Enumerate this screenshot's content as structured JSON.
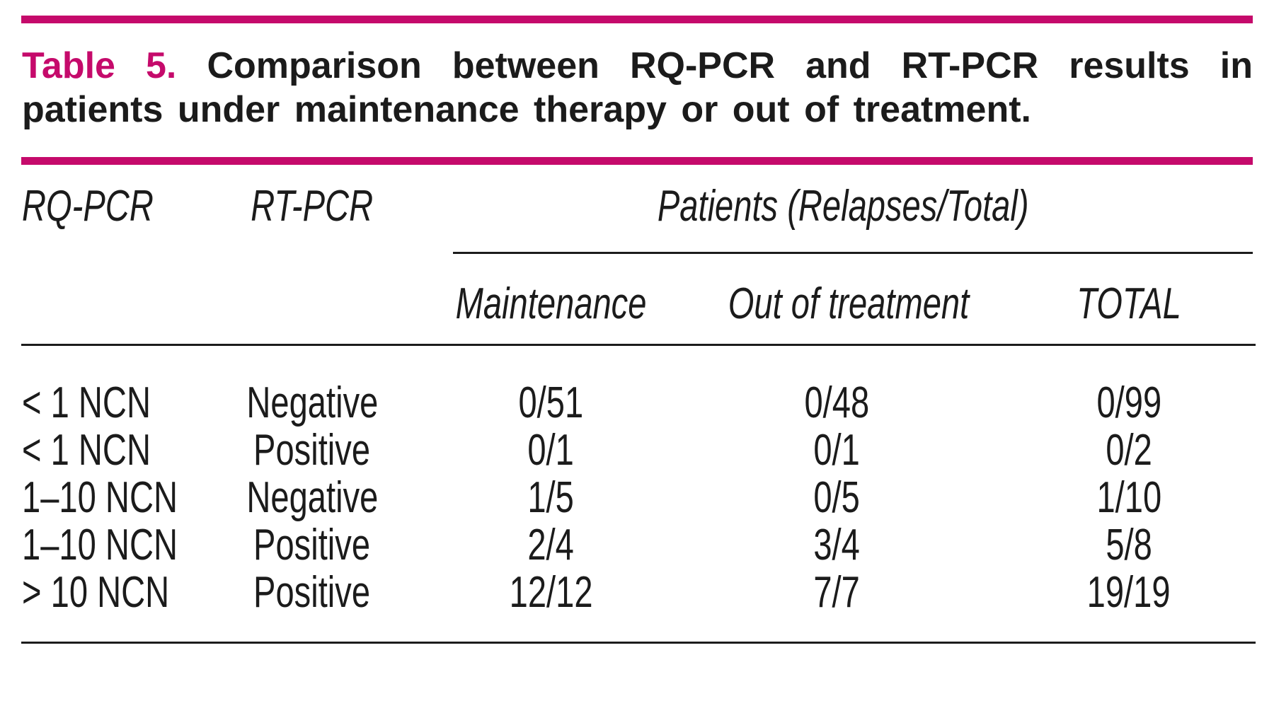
{
  "accent_color": "#c50a6b",
  "title": {
    "label": "Table 5.",
    "caption_line1": "Comparison between RQ-PCR and RT-PCR results in",
    "caption_line2": "patients under maintenance therapy or out of treatment.",
    "caption_full": "Comparison between RQ-PCR and RT-PCR results in patients under maintenance therapy or out of treatment."
  },
  "header": {
    "col_rq": "RQ-PCR",
    "col_rt": "RT-PCR",
    "group": "Patients (Relapses/Total)",
    "sub_maintenance": "Maintenance",
    "sub_out": "Out of treatment",
    "sub_total": "TOTAL"
  },
  "rows": [
    {
      "rq": "< 1 NCN",
      "rt": "Negative",
      "maintenance": "0/51",
      "out": "0/48",
      "total": "0/99"
    },
    {
      "rq": "< 1 NCN",
      "rt": "Positive",
      "maintenance": "0/1",
      "out": "0/1",
      "total": "0/2"
    },
    {
      "rq": "1–10 NCN",
      "rt": "Negative",
      "maintenance": "1/5",
      "out": "0/5",
      "total": "1/10"
    },
    {
      "rq": "1–10 NCN",
      "rt": "Positive",
      "maintenance": "2/4",
      "out": "3/4",
      "total": "5/8"
    },
    {
      "rq": "> 10 NCN",
      "rt": "Positive",
      "maintenance": "12/12",
      "out": "7/7",
      "total": "19/19"
    }
  ],
  "chart_data": {
    "type": "table",
    "title": "Table 5. Comparison between RQ-PCR and RT-PCR results in patients under maintenance therapy or out of treatment.",
    "columns": [
      "RQ-PCR",
      "RT-PCR",
      "Maintenance",
      "Out of treatment",
      "TOTAL"
    ],
    "column_group": {
      "label": "Patients (Relapses/Total)",
      "spans": [
        "Maintenance",
        "Out of treatment",
        "TOTAL"
      ]
    },
    "rows": [
      [
        "< 1 NCN",
        "Negative",
        "0/51",
        "0/48",
        "0/99"
      ],
      [
        "< 1 NCN",
        "Positive",
        "0/1",
        "0/1",
        "0/2"
      ],
      [
        "1–10 NCN",
        "Negative",
        "1/5",
        "0/5",
        "1/10"
      ],
      [
        "1–10 NCN",
        "Positive",
        "2/4",
        "3/4",
        "5/8"
      ],
      [
        "> 10 NCN",
        "Positive",
        "12/12",
        "7/7",
        "19/19"
      ]
    ]
  }
}
